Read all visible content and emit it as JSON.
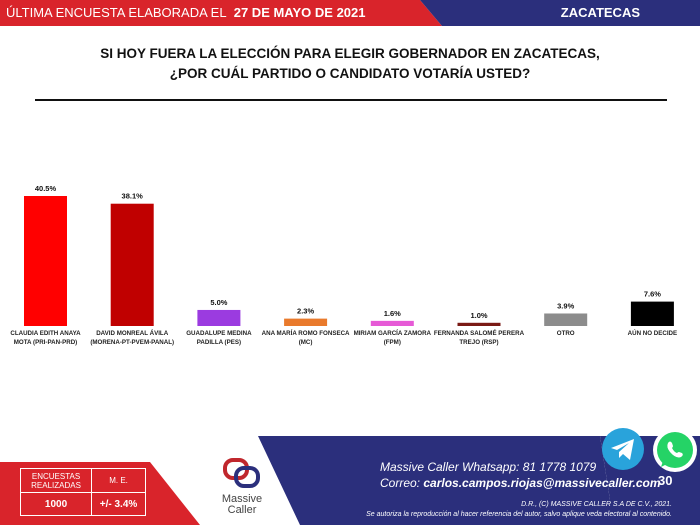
{
  "header": {
    "survey_label": "ÚLTIMA ENCUESTA ELABORADA EL",
    "survey_date": "27 DE MAYO DE 2021",
    "state": "ZACATECAS"
  },
  "colors": {
    "navy": "#2b2f7c",
    "red": "#d9242b"
  },
  "chart_data": {
    "type": "bar",
    "title": "SI HOY FUERA LA ELECCIÓN PARA ELEGIR GOBERNADOR EN ZACATECAS,",
    "subtitle": "¿POR CUÁL PARTIDO O CANDIDATO VOTARÍA USTED?",
    "categories": [
      [
        "CLAUDIA EDITH ANAYA",
        "MOTA (PRI-PAN-PRD)"
      ],
      [
        "DAVID MONREAL ÁVILA",
        "(MORENA-PT-PVEM-PANAL)"
      ],
      [
        "GUADALUPE MEDINA",
        "PADILLA  (PES)"
      ],
      [
        "ANA MARÍA ROMO FONSECA",
        "(MC)"
      ],
      [
        "MIRIAM GARCÍA ZAMORA",
        "(FPM)"
      ],
      [
        "FERNANDA SALOMÉ PERERA",
        "TREJO (RSP)"
      ],
      [
        "OTRO"
      ],
      [
        "AÚN NO DECIDE"
      ]
    ],
    "values": [
      40.5,
      38.1,
      5.0,
      2.3,
      1.6,
      1.0,
      3.9,
      7.6
    ],
    "value_labels": [
      "40.5%",
      "38.1%",
      "5.0%",
      "2.3%",
      "1.6%",
      "1.0%",
      "3.9%",
      "7.6%"
    ],
    "colors": [
      "#ff0000",
      "#c00000",
      "#9b3be0",
      "#e97a2c",
      "#e65ad6",
      "#7a1a14",
      "#8c8c8c",
      "#000000"
    ],
    "ylim": [
      0,
      40.5
    ],
    "xlabel": "",
    "ylabel": "",
    "grid": false,
    "legend": "none"
  },
  "footer": {
    "surveys_label": [
      "ENCUESTAS",
      "REALIZADAS"
    ],
    "surveys_value": "1000",
    "me_label": "M. E.",
    "me_value": "+/- 3.4%",
    "logo_text": [
      "Massive",
      "Caller"
    ],
    "whatsapp_label": "Massive Caller Whatsapp:",
    "whatsapp_number": "81 1778 1079",
    "email_label": "Correo:",
    "email": "carlos.campos.riojas@massivecaller.com",
    "copyright": "D.R., (C) MASSIVE CALLER S.A DE C.V., 2021.",
    "disclaimer": "Se autoriza la reproducción al hacer referencia del autor, salvo aplique veda electoral al contenido.",
    "page_number": "30"
  }
}
